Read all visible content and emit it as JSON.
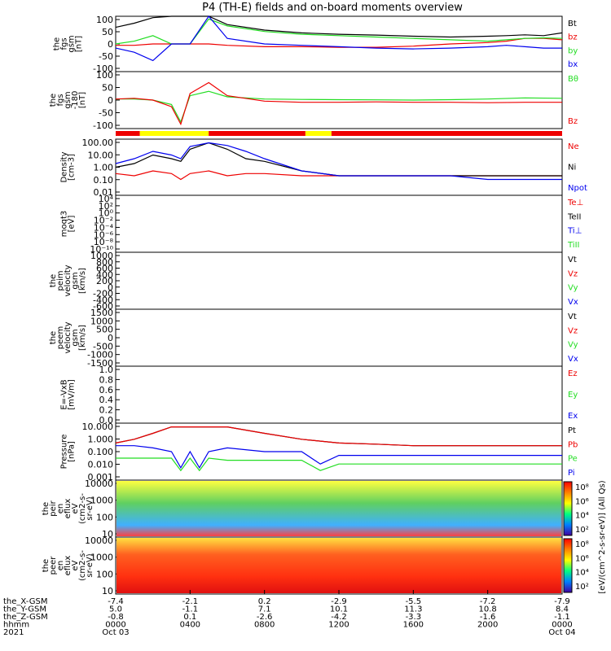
{
  "title": "P4 (TH-E) fields and on-board moments overview",
  "colors": {
    "black": "#000000",
    "red": "#ee0000",
    "green": "#22dd22",
    "blue": "#0000ee",
    "yellow": "#ffff00"
  },
  "panels": [
    {
      "ylabel": [
        "the",
        "fgs",
        "gsm",
        "[nT]"
      ],
      "ticks": [
        "100",
        "50",
        "0",
        "-50",
        "-100"
      ],
      "legend": [
        {
          "text": "Bt",
          "color": "#000000"
        },
        {
          "text": "bz",
          "color": "#ee0000"
        },
        {
          "text": "by",
          "color": "#22dd22"
        },
        {
          "text": "bx",
          "color": "#0000ee"
        }
      ]
    },
    {
      "ylabel": [
        "the",
        "fgs",
        "gsm",
        "-180",
        "[nT]"
      ],
      "ticks": [
        "100",
        "50",
        "0",
        "-50",
        "-100"
      ],
      "legend": [
        {
          "text": "Bθ",
          "color": "#22dd22"
        },
        {
          "text": "Bz",
          "color": "#ee0000"
        }
      ]
    },
    {
      "ylabel": [
        "Density",
        "[cm-3]"
      ],
      "ticks": [
        "100.00",
        "10.00",
        "1.00",
        "0.10",
        "0.01"
      ],
      "legend": [
        {
          "text": "Ne",
          "color": "#ee0000"
        },
        {
          "text": "Ni",
          "color": "#000000"
        },
        {
          "text": "Npot",
          "color": "#0000ee"
        }
      ]
    },
    {
      "ylabel": [
        "moqt3",
        "[eV]"
      ],
      "ticks": [
        "10⁴",
        "10²",
        "10⁰",
        "10⁻²",
        "10⁻⁴",
        "10⁻⁶",
        "10⁻⁸",
        "10⁻¹⁰"
      ],
      "legend": [
        {
          "text": "Te⊥",
          "color": "#ee0000"
        },
        {
          "text": "TeII",
          "color": "#000000"
        },
        {
          "text": "Ti⊥",
          "color": "#0000ee"
        },
        {
          "text": "TiII",
          "color": "#22dd22"
        }
      ]
    },
    {
      "ylabel": [
        "the",
        "peim",
        "velocity",
        "gsm",
        "[km/s]"
      ],
      "ticks": [
        "1000",
        "800",
        "600",
        "400",
        "200",
        "0",
        "-200",
        "-400",
        "-600"
      ],
      "legend": [
        {
          "text": "Vt",
          "color": "#000000"
        },
        {
          "text": "Vz",
          "color": "#ee0000"
        },
        {
          "text": "Vy",
          "color": "#22dd22"
        },
        {
          "text": "Vx",
          "color": "#0000ee"
        }
      ]
    },
    {
      "ylabel": [
        "the",
        "peem",
        "velocity",
        "gsm",
        "[km/s]"
      ],
      "ticks": [
        "1500",
        "1000",
        "500",
        "0",
        "-500",
        "-1000",
        "-1500"
      ],
      "legend": [
        {
          "text": "Vt",
          "color": "#000000"
        },
        {
          "text": "Vz",
          "color": "#ee0000"
        },
        {
          "text": "Vy",
          "color": "#22dd22"
        },
        {
          "text": "Vx",
          "color": "#0000ee"
        }
      ]
    },
    {
      "ylabel": [
        "E=-VxB",
        "[mV/m]"
      ],
      "ticks": [
        "1.0",
        "0.8",
        "0.6",
        "0.4",
        "0.2",
        "0.0"
      ],
      "legend": [
        {
          "text": "Ez",
          "color": "#ee0000"
        },
        {
          "text": "Ey",
          "color": "#22dd22"
        },
        {
          "text": "Ex",
          "color": "#0000ee"
        }
      ]
    },
    {
      "ylabel": [
        "Pressure",
        "[nPa]"
      ],
      "ticks": [
        "10.000",
        "1.000",
        "0.100",
        "0.010",
        "0.001"
      ],
      "legend": [
        {
          "text": "Pt",
          "color": "#000000"
        },
        {
          "text": "Pb",
          "color": "#ee0000"
        },
        {
          "text": "Pe",
          "color": "#22dd22"
        },
        {
          "text": "Pi",
          "color": "#0000ee"
        }
      ]
    },
    {
      "ylabel": [
        "the",
        "peir",
        "en",
        "eflux",
        "eV",
        "(cm2-s-",
        "sr-eV)"
      ],
      "ticks": [
        "10000",
        "1000",
        "100",
        "10"
      ]
    },
    {
      "ylabel": [
        "the",
        "peer",
        "en",
        "eflux",
        "eV",
        "(cm2-s-",
        "sr-eV)"
      ],
      "ticks": [
        "10000",
        "1000",
        "100",
        "10"
      ]
    }
  ],
  "colorbar": {
    "label": "[eV/(cm^2-s-sr-eV)] (All Qs)",
    "ticks1": [
      "10⁸",
      "10⁶",
      "10⁴",
      "10²"
    ],
    "ticks2": [
      "10⁸",
      "10⁶",
      "10⁴",
      "10²"
    ]
  },
  "xaxis": {
    "row_labels": [
      "the_X-GSM",
      "the_Y-GSM",
      "the_Z-GSM",
      "hhmm",
      "2021"
    ],
    "ticks": [
      {
        "x": "-7.4",
        "y": "5.0",
        "z": "-0.8",
        "hhmm": "0000",
        "date": "Oct 03"
      },
      {
        "x": "-2.1",
        "y": "-1.1",
        "z": "0.1",
        "hhmm": "0400",
        "date": ""
      },
      {
        "x": "0.2",
        "y": "7.1",
        "z": "-2.6",
        "hhmm": "0800",
        "date": ""
      },
      {
        "x": "-2.9",
        "y": "10.1",
        "z": "-4.2",
        "hhmm": "1200",
        "date": ""
      },
      {
        "x": "-5.5",
        "y": "11.3",
        "z": "-3.3",
        "hhmm": "1600",
        "date": ""
      },
      {
        "x": "-7.2",
        "y": "10.8",
        "z": "-1.6",
        "hhmm": "2000",
        "date": ""
      },
      {
        "x": "-7.9",
        "y": "8.4",
        "z": "-1.1",
        "hhmm": "0000",
        "date": "Oct 04"
      }
    ]
  },
  "chart_data": {
    "type": "line",
    "title": "P4 (TH-E) fields and on-board moments overview",
    "x_range_hours": [
      0,
      24
    ],
    "x_tick_times": [
      "0000",
      "0400",
      "0800",
      "1200",
      "1600",
      "2000",
      "0000"
    ],
    "mode_bar": [
      {
        "start_h": 0,
        "end_h": 1.3,
        "color": "#ee0000"
      },
      {
        "start_h": 1.3,
        "end_h": 5.0,
        "color": "#ffff00"
      },
      {
        "start_h": 5.0,
        "end_h": 10.2,
        "color": "#ee0000"
      },
      {
        "start_h": 10.2,
        "end_h": 11.6,
        "color": "#ffff00"
      },
      {
        "start_h": 11.6,
        "end_h": 24,
        "color": "#ee0000"
      }
    ],
    "series": [
      {
        "panel": 0,
        "name": "Bt",
        "color": "#000000",
        "x": [
          0,
          1,
          2,
          3,
          4,
          5,
          6,
          8,
          10,
          12,
          14,
          16,
          18,
          20,
          21,
          22,
          23,
          24
        ],
        "y": [
          60,
          75,
          95,
          100,
          100,
          100,
          70,
          50,
          40,
          35,
          32,
          28,
          25,
          28,
          30,
          33,
          30,
          40
        ]
      },
      {
        "panel": 0,
        "name": "bz",
        "color": "#ee0000",
        "x": [
          0,
          1,
          2,
          3,
          4,
          5,
          6,
          8,
          10,
          12,
          14,
          16,
          18,
          20,
          21,
          22,
          23,
          24
        ],
        "y": [
          -5,
          -5,
          0,
          0,
          0,
          0,
          -5,
          -10,
          -10,
          -12,
          -12,
          -8,
          0,
          5,
          10,
          20,
          20,
          15
        ]
      },
      {
        "panel": 0,
        "name": "by",
        "color": "#22dd22",
        "x": [
          0,
          1,
          2,
          3,
          4,
          5,
          6,
          8,
          10,
          12,
          14,
          16,
          18,
          20,
          21,
          22,
          23,
          24
        ],
        "y": [
          0,
          10,
          30,
          0,
          0,
          90,
          65,
          45,
          35,
          30,
          25,
          20,
          15,
          10,
          15,
          20,
          22,
          20
        ]
      },
      {
        "panel": 0,
        "name": "bx",
        "color": "#0000ee",
        "x": [
          0,
          1,
          2,
          3,
          4,
          5,
          6,
          8,
          10,
          12,
          14,
          16,
          18,
          20,
          21,
          22,
          23,
          24
        ],
        "y": [
          -15,
          -30,
          -60,
          0,
          0,
          100,
          20,
          0,
          -5,
          -10,
          -15,
          -18,
          -15,
          -10,
          -5,
          -10,
          -15,
          -15
        ]
      },
      {
        "panel": 1,
        "name": "Bθ",
        "color": "#22dd22",
        "x": [
          0,
          1,
          2,
          3,
          3.5,
          4,
          5,
          6,
          8,
          10,
          12,
          14,
          16,
          18,
          20,
          22,
          24
        ],
        "y": [
          5,
          5,
          0,
          -20,
          -100,
          20,
          40,
          15,
          5,
          3,
          2,
          1,
          0,
          2,
          5,
          10,
          8
        ]
      },
      {
        "panel": 1,
        "name": "Bz",
        "color": "#ee0000",
        "x": [
          0,
          1,
          2,
          3,
          3.5,
          4,
          5,
          6,
          8,
          10,
          12,
          14,
          16,
          18,
          20,
          22,
          24
        ],
        "y": [
          5,
          8,
          0,
          -30,
          -110,
          30,
          80,
          20,
          -5,
          -10,
          -10,
          -8,
          -10,
          -10,
          -12,
          -10,
          -10
        ]
      },
      {
        "panel": 2,
        "name": "Ne",
        "color": "#ee0000",
        "x": [
          0,
          1,
          2,
          3,
          3.5,
          4,
          5,
          6,
          7,
          8,
          10,
          12,
          14,
          16,
          18,
          20,
          22,
          24
        ],
        "y": [
          0.3,
          0.2,
          0.5,
          0.3,
          0.1,
          0.3,
          0.5,
          0.2,
          0.3,
          0.3,
          0.2,
          0.2,
          0.2,
          0.2,
          0.2,
          0.2,
          0.2,
          0.2
        ]
      },
      {
        "panel": 2,
        "name": "Ni",
        "color": "#000000",
        "x": [
          0,
          1,
          2,
          3,
          3.5,
          4,
          5,
          6,
          7,
          8,
          10,
          12,
          14,
          16,
          18,
          20,
          22,
          24
        ],
        "y": [
          1,
          2,
          10,
          5,
          3,
          30,
          100,
          30,
          5,
          3,
          0.5,
          0.2,
          0.2,
          0.2,
          0.2,
          0.2,
          0.2,
          0.2
        ]
      },
      {
        "panel": 2,
        "name": "Npot",
        "color": "#0000ee",
        "x": [
          0,
          1,
          2,
          3,
          3.5,
          4,
          5,
          6,
          7,
          8,
          10,
          12,
          14,
          16,
          18,
          20,
          22,
          24
        ],
        "y": [
          2,
          5,
          20,
          10,
          5,
          50,
          100,
          60,
          20,
          5,
          0.5,
          0.2,
          0.2,
          0.2,
          0.2,
          0.1,
          0.1,
          0.1
        ]
      },
      {
        "panel": 7,
        "name": "Pt",
        "color": "#000000",
        "x": [
          0,
          1,
          2,
          3,
          4,
          6,
          8,
          10,
          12,
          14,
          16,
          18,
          20,
          22,
          24
        ],
        "y": [
          0.5,
          1,
          3,
          10,
          10,
          10,
          3,
          1,
          0.5,
          0.4,
          0.3,
          0.3,
          0.3,
          0.3,
          0.3
        ]
      },
      {
        "panel": 7,
        "name": "Pb",
        "color": "#ee0000",
        "x": [
          0,
          1,
          2,
          3,
          4,
          6,
          8,
          10,
          12,
          14,
          16,
          18,
          20,
          22,
          24
        ],
        "y": [
          0.5,
          1,
          3,
          10,
          10,
          10,
          3,
          1,
          0.5,
          0.4,
          0.3,
          0.3,
          0.3,
          0.3,
          0.3
        ]
      },
      {
        "panel": 7,
        "name": "Pe",
        "color": "#22dd22",
        "x": [
          0,
          1,
          2,
          3,
          3.5,
          4,
          4.5,
          5,
          6,
          8,
          10,
          11,
          12,
          14,
          16,
          18,
          20,
          22,
          24
        ],
        "y": [
          0.03,
          0.03,
          0.03,
          0.03,
          0.003,
          0.03,
          0.003,
          0.03,
          0.02,
          0.02,
          0.02,
          0.003,
          0.01,
          0.01,
          0.01,
          0.01,
          0.01,
          0.01,
          0.01
        ]
      },
      {
        "panel": 7,
        "name": "Pi",
        "color": "#0000ee",
        "x": [
          0,
          1,
          2,
          3,
          3.5,
          4,
          4.5,
          5,
          6,
          8,
          10,
          11,
          12,
          14,
          16,
          18,
          20,
          22,
          24
        ],
        "y": [
          0.3,
          0.3,
          0.2,
          0.1,
          0.005,
          0.1,
          0.005,
          0.1,
          0.2,
          0.1,
          0.1,
          0.01,
          0.05,
          0.05,
          0.05,
          0.05,
          0.05,
          0.05,
          0.05
        ]
      }
    ]
  }
}
